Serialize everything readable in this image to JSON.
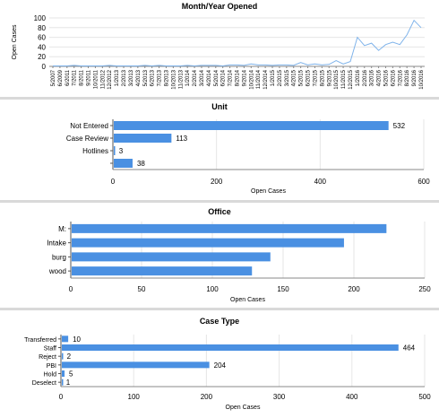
{
  "chart_data": [
    {
      "type": "line",
      "title": "Month/Year Opened",
      "ylabel": "Open Cases",
      "xlabel": "",
      "ylim": [
        0,
        100
      ],
      "yticks": [
        0,
        20,
        40,
        60,
        80,
        100
      ],
      "grid": true,
      "x_tick_labels": [
        "5/2007",
        "6/2009",
        "6/2011",
        "7/2011",
        "8/2011",
        "9/2011",
        "10/2011",
        "11/2012",
        "12/2012",
        "1/2013",
        "2/2013",
        "3/2013",
        "4/2013",
        "5/2013",
        "6/2013",
        "7/2013",
        "8/2013",
        "10/2013",
        "11/2013",
        "1/2014",
        "2/2014",
        "3/2014",
        "4/2014",
        "5/2014",
        "6/2014",
        "7/2014",
        "8/2014",
        "9/2014",
        "10/2014",
        "11/2014",
        "12/2014",
        "1/2015",
        "2/2015",
        "3/2015",
        "4/2015",
        "5/2015",
        "6/2015",
        "7/2015",
        "8/2015",
        "9/2015",
        "10/2015",
        "11/2015",
        "12/2015",
        "1/2016",
        "2/2016",
        "3/2016",
        "4/2016",
        "5/2016",
        "6/2016",
        "7/2016",
        "8/2016",
        "9/2016",
        "10/2016"
      ],
      "values": [
        1,
        1,
        1,
        2,
        1,
        1,
        1,
        1,
        2,
        1,
        1,
        1,
        1,
        2,
        1,
        2,
        1,
        1,
        1,
        2,
        1,
        2,
        2,
        2,
        1,
        3,
        3,
        2,
        5,
        3,
        3,
        2,
        3,
        3,
        2,
        8,
        3,
        5,
        3,
        4,
        12,
        5,
        10,
        60,
        43,
        48,
        33,
        45,
        50,
        45,
        65,
        95,
        80
      ],
      "color": "#4a90e2"
    },
    {
      "type": "bar",
      "orientation": "horizontal",
      "title": "Unit",
      "xlabel": "Open Cases",
      "categories": [
        "Not Entered",
        "Case Review",
        "Hotlines",
        ""
      ],
      "values": [
        532,
        113,
        3,
        38
      ],
      "xlim": [
        0,
        600
      ],
      "xticks": [
        0,
        200,
        400,
        600
      ],
      "data_labels": true,
      "color": "#4a90e2"
    },
    {
      "type": "bar",
      "orientation": "horizontal",
      "title": "Office",
      "xlabel": "Open Cases",
      "categories": [
        "M:",
        "Intake",
        "burg",
        "wood"
      ],
      "values": [
        223,
        193,
        141,
        128
      ],
      "xlim": [
        0,
        250
      ],
      "xticks": [
        0,
        50,
        100,
        150,
        200,
        250
      ],
      "data_labels": false,
      "color": "#4a90e2"
    },
    {
      "type": "bar",
      "orientation": "horizontal",
      "title": "Case Type",
      "xlabel": "Open Cases",
      "categories": [
        "Transferred",
        "Staff",
        "Reject",
        "PBI",
        "Hold",
        "Deselect"
      ],
      "values": [
        10,
        464,
        2,
        204,
        5,
        1
      ],
      "xlim": [
        0,
        500
      ],
      "xticks": [
        0,
        100,
        200,
        300,
        400,
        500
      ],
      "data_labels": true,
      "color": "#4a90e2"
    }
  ]
}
